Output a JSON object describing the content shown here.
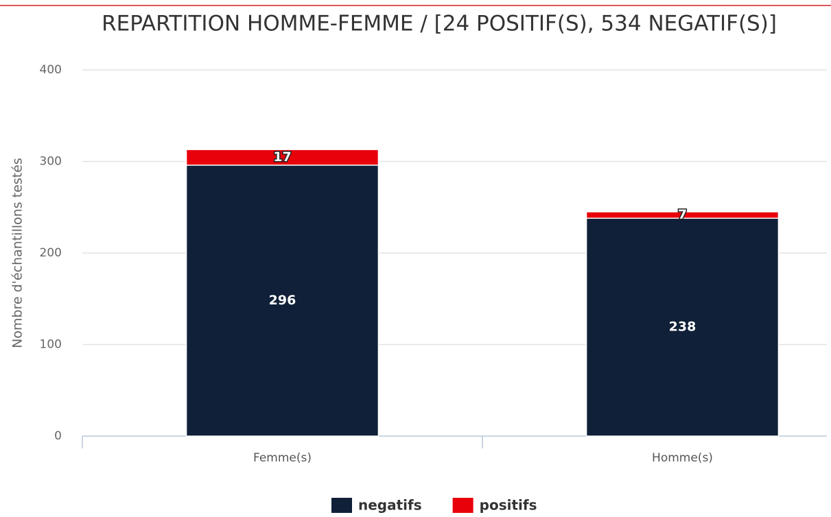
{
  "chart_data": {
    "type": "stacked_bar",
    "title": "REPARTITION HOMME-FEMME / [24 POSITIF(S), 534 NEGATIF(S)]",
    "y_label": "Nombre d'échantillons testés",
    "categories": [
      "Femme(s)",
      "Homme(s)"
    ],
    "series": [
      {
        "name": "negatifs",
        "color": "#0f2038",
        "values": [
          296,
          238
        ]
      },
      {
        "name": "positifs",
        "color": "#e8000b",
        "values": [
          17,
          7
        ]
      }
    ],
    "ylim": [
      0,
      400
    ],
    "yticks": [
      0,
      100,
      200,
      300,
      400
    ],
    "grid": true,
    "legend": "bottom"
  }
}
